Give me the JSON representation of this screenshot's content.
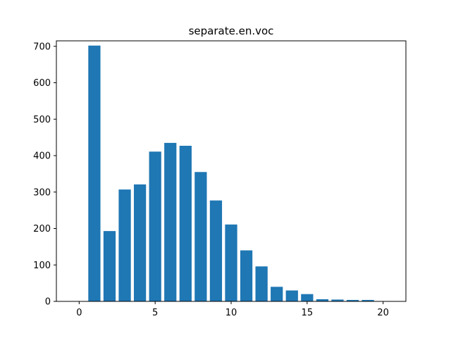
{
  "chart_data": {
    "type": "bar",
    "title": "separate.en.voc",
    "xlabel": "",
    "ylabel": "",
    "x": [
      1,
      2,
      3,
      4,
      5,
      6,
      7,
      8,
      9,
      10,
      11,
      12,
      13,
      14,
      15,
      16,
      17,
      18,
      19,
      20
    ],
    "values": [
      702,
      193,
      307,
      321,
      411,
      435,
      427,
      355,
      277,
      211,
      140,
      96,
      40,
      30,
      20,
      6,
      5,
      4,
      4,
      0
    ],
    "xlim": [
      -1.5,
      21.5
    ],
    "ylim": [
      0,
      715
    ],
    "xticks": [
      0,
      5,
      10,
      15,
      20
    ],
    "yticks": [
      0,
      100,
      200,
      300,
      400,
      500,
      600,
      700
    ],
    "bar_width": 0.8,
    "bar_color": "#1f77b4",
    "grid": false,
    "legend": "none"
  }
}
